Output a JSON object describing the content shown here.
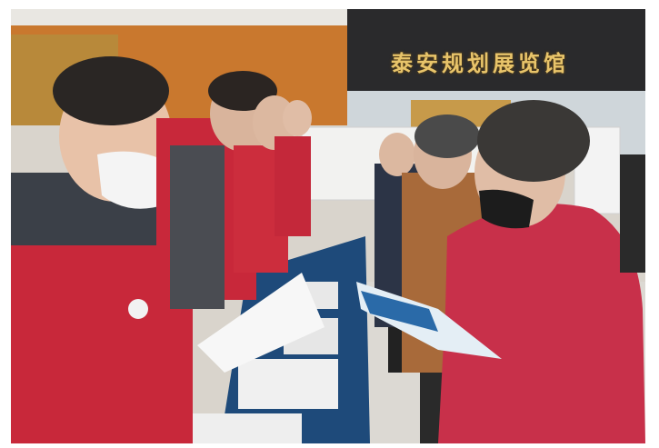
{
  "photo": {
    "sign_text": "泰安规划展览馆",
    "colors": {
      "vest_red": "#c8283a",
      "coat_brown": "#a86a3a",
      "jacket_pink": "#c8304a",
      "table_blue": "#1e4a7a",
      "wall_orange": "#c9782e",
      "sign_gold": "#e8c46a"
    }
  }
}
